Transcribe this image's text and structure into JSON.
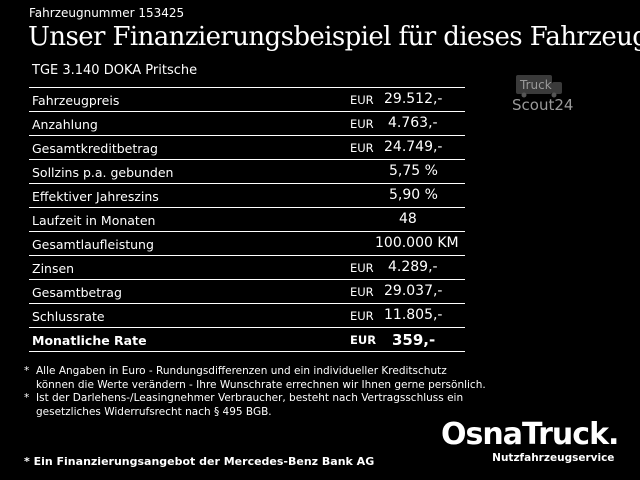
{
  "header": {
    "vehicle_number": "Fahrzeugnummer 153425",
    "headline": "Unser Finanzierungsbeispiel für dieses Fahrzeug.*",
    "model": "TGE 3.140 DOKA Pritsche"
  },
  "table": {
    "rows": [
      {
        "label": "Fahrzeugpreis",
        "currency": "EUR",
        "value": "29.512,-"
      },
      {
        "label": "Anzahlung",
        "currency": "EUR",
        "value": "4.763,-"
      },
      {
        "label": "Gesamtkreditbetrag",
        "currency": "EUR",
        "value": "24.749,-"
      },
      {
        "label": "Sollzins p.a. gebunden",
        "currency": "",
        "value": "5,75 %"
      },
      {
        "label": "Effektiver Jahreszins",
        "currency": "",
        "value": "5,90 %"
      },
      {
        "label": "Laufzeit in Monaten",
        "currency": "",
        "value": "48"
      },
      {
        "label": "Gesamtlaufleistung",
        "currency": "",
        "value": "100.000 KM"
      },
      {
        "label": "Zinsen",
        "currency": "EUR",
        "value": "4.289,-"
      },
      {
        "label": "Gesamtbetrag",
        "currency": "EUR",
        "value": "29.037,-"
      },
      {
        "label": "Schlussrate",
        "currency": "EUR",
        "value": "11.805,-"
      },
      {
        "label": "Monatliche Rate",
        "currency": "EUR",
        "value": "359,-"
      }
    ]
  },
  "footnotes": {
    "note1_star": "*",
    "note1_line1": "Alle Angaben in Euro - Rundungsdifferenzen und ein individueller Kreditschutz",
    "note1_line2": "können die Werte verändern - Ihre Wunschrate errechnen wir Ihnen gerne persönlich.",
    "note2_star": "*",
    "note2_line1": "Ist der Darlehens-/Leasingnehmer Verbraucher, besteht nach Vertragsschluss ein",
    "note2_line2": "gesetzliches Widerrufsrecht nach § 495 BGB."
  },
  "bank_note": "* Ein Finanzierungsangebot der Mercedes-Benz Bank AG",
  "logos": {
    "truckscout_line1": "Truck",
    "truckscout_line2": "Scout24",
    "osnatruck_word": "OsnaTruck.",
    "osnatruck_sub": "Nutzfahrzeugservice"
  }
}
